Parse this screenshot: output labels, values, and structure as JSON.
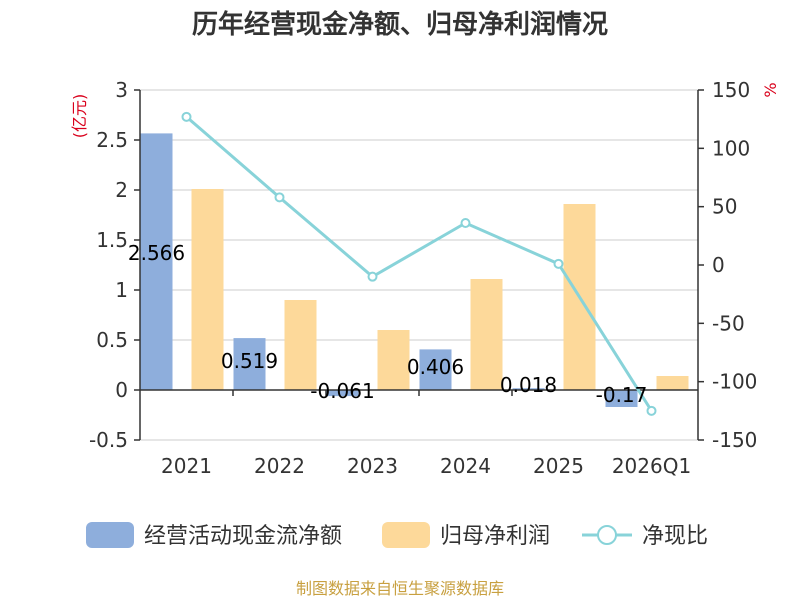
{
  "title": "历年经营现金净额、归母净利润情况",
  "source": "制图数据来自恒生聚源数据库",
  "colors": {
    "cash_flow": "#8eaedc",
    "net_profit": "#fdd99a",
    "ratio": "#88d3d9",
    "grid": "#cccccc",
    "axis": "#333333"
  },
  "chart_data": {
    "type": "bar",
    "categories": [
      "2021",
      "2022",
      "2023",
      "2024",
      "2025",
      "2026Q1"
    ],
    "left_axis": {
      "unit": "(亿元)",
      "ylim": [
        -0.5,
        3
      ],
      "ticks": [
        "3",
        "2.5",
        "2",
        "1.5",
        "1",
        "0.5",
        "0",
        "-0.5"
      ],
      "tick_values": [
        3,
        2.5,
        2,
        1.5,
        1,
        0.5,
        0,
        -0.5
      ]
    },
    "right_axis": {
      "unit": "%",
      "ylim": [
        -150,
        150
      ],
      "ticks": [
        "150",
        "100",
        "50",
        "0",
        "-50",
        "-100",
        "-150"
      ],
      "tick_values": [
        150,
        100,
        50,
        0,
        -50,
        -100,
        -150
      ]
    },
    "grid": true,
    "legend_position": "bottom",
    "series": [
      {
        "name": "经营活动现金流净额",
        "type": "bar",
        "axis": "left",
        "values": [
          2.566,
          0.519,
          -0.061,
          0.406,
          0.018,
          -0.17
        ],
        "labels": [
          "2.566",
          "0.519",
          "-0.061",
          "0.406",
          "0.018",
          "-0.17"
        ]
      },
      {
        "name": "归母净利润",
        "type": "bar",
        "axis": "left",
        "values": [
          2.01,
          0.9,
          0.6,
          1.11,
          1.86,
          0.14
        ]
      },
      {
        "name": "净现比",
        "type": "line",
        "axis": "right",
        "values": [
          127,
          58,
          -10,
          36,
          1,
          -125
        ]
      }
    ]
  }
}
